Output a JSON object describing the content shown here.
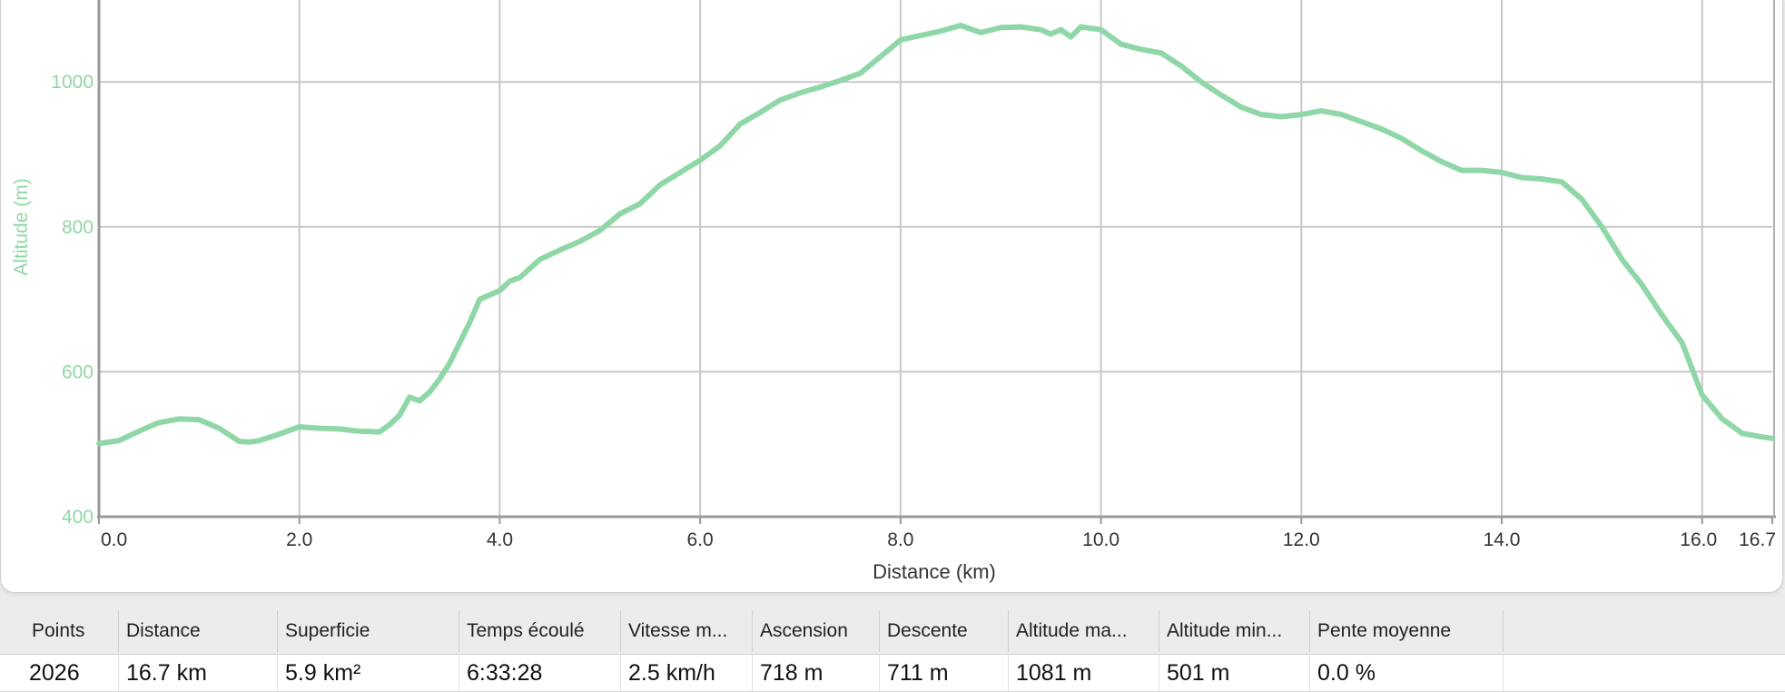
{
  "chart_data": {
    "type": "line",
    "xlabel": "Distance (km)",
    "ylabel": "Altitude (m)",
    "xlim": [
      0,
      16.7
    ],
    "ylim": [
      400,
      1100
    ],
    "x_ticks": [
      "0.0",
      "2.0",
      "4.0",
      "6.0",
      "8.0",
      "10.0",
      "12.0",
      "14.0",
      "16.0",
      "16.7"
    ],
    "y_ticks": [
      "400",
      "600",
      "800",
      "1000"
    ],
    "line_color": "#8fd7a6",
    "grid": true,
    "x": [
      0,
      0.2,
      0.4,
      0.6,
      0.8,
      1.0,
      1.2,
      1.4,
      1.5,
      1.6,
      1.8,
      2.0,
      2.2,
      2.4,
      2.6,
      2.8,
      2.9,
      3.0,
      3.1,
      3.2,
      3.3,
      3.4,
      3.5,
      3.6,
      3.7,
      3.8,
      3.9,
      4.0,
      4.1,
      4.2,
      4.4,
      4.6,
      4.8,
      5.0,
      5.2,
      5.4,
      5.6,
      5.8,
      6.0,
      6.2,
      6.4,
      6.6,
      6.8,
      7.0,
      7.2,
      7.4,
      7.6,
      7.8,
      8.0,
      8.2,
      8.4,
      8.6,
      8.8,
      9.0,
      9.2,
      9.4,
      9.5,
      9.6,
      9.7,
      9.8,
      10.0,
      10.2,
      10.4,
      10.6,
      10.8,
      11.0,
      11.2,
      11.4,
      11.6,
      11.8,
      12.0,
      12.2,
      12.4,
      12.6,
      12.8,
      13.0,
      13.2,
      13.4,
      13.6,
      13.8,
      14.0,
      14.2,
      14.4,
      14.6,
      14.8,
      15.0,
      15.2,
      15.4,
      15.6,
      15.8,
      16.0,
      16.2,
      16.4,
      16.6,
      16.7
    ],
    "y": [
      501,
      505,
      518,
      530,
      535,
      534,
      522,
      504,
      503,
      505,
      514,
      524,
      522,
      521,
      518,
      517,
      527,
      540,
      565,
      560,
      572,
      590,
      612,
      640,
      668,
      700,
      706,
      712,
      725,
      730,
      755,
      768,
      780,
      795,
      818,
      832,
      858,
      875,
      892,
      912,
      942,
      958,
      975,
      985,
      993,
      1002,
      1012,
      1035,
      1058,
      1064,
      1070,
      1078,
      1068,
      1075,
      1076,
      1072,
      1066,
      1072,
      1062,
      1076,
      1072,
      1052,
      1045,
      1040,
      1022,
      1000,
      982,
      965,
      955,
      952,
      955,
      960,
      955,
      945,
      935,
      922,
      905,
      890,
      878,
      878,
      875,
      868,
      866,
      862,
      838,
      800,
      755,
      720,
      678,
      640,
      568,
      535,
      515,
      510,
      508
    ]
  },
  "stats": {
    "headers": [
      "Points",
      "Distance",
      "Superficie",
      "Temps écoulé",
      "Vitesse m...",
      "Ascension",
      "Descente",
      "Altitude ma...",
      "Altitude min...",
      "Pente moyenne"
    ],
    "values": [
      "2026",
      "16.7 km",
      "5.9 km²",
      "6:33:28",
      "2.5 km/h",
      "718 m",
      "711 m",
      "1081 m",
      "501 m",
      "0.0 %"
    ]
  }
}
